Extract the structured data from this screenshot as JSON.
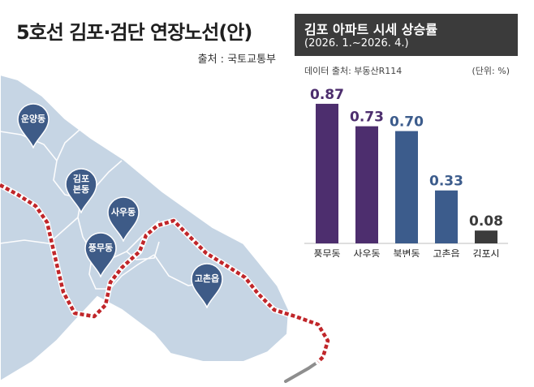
{
  "header": {
    "title": "5호선 김포·검단 연장노선(안)",
    "source": "출처 : 국토교통부"
  },
  "map": {
    "pins": [
      {
        "id": "unyang",
        "label": [
          "운양동"
        ]
      },
      {
        "id": "gimpo-bondong",
        "label": [
          "김포",
          "본동"
        ]
      },
      {
        "id": "sau",
        "label": [
          "사우동"
        ]
      },
      {
        "id": "pungmu",
        "label": [
          "풍무동"
        ]
      },
      {
        "id": "gochon",
        "label": [
          "고촌읍"
        ]
      }
    ],
    "colors": {
      "land": "#c6d5e4",
      "land_border": "#ffffff",
      "route": "#c0262a",
      "route_gap": "#ffffff",
      "existing_line": "#8e8e8e",
      "pin": "#3e5b87"
    }
  },
  "panel": {
    "title": "김포 아파트 시세 상승률",
    "period": "(2026. 1.~2026. 4.)",
    "data_source": "데이터 출처: 부동산R114",
    "unit": "(단위: %)"
  },
  "chart_data": {
    "type": "bar",
    "title": "김포 아파트 시세 상승률",
    "subtitle": "(2026. 1.~2026. 4.)",
    "xlabel": "",
    "ylabel": "",
    "categories": [
      "풍무동",
      "사우동",
      "북변동",
      "고촌읍",
      "김포시"
    ],
    "values": [
      0.87,
      0.73,
      0.7,
      0.33,
      0.08
    ],
    "value_labels": [
      "0.87",
      "0.73",
      "0.70",
      "0.33",
      "0.08"
    ],
    "bar_colors": [
      "#4d2e6e",
      "#4d2e6e",
      "#3c5c8c",
      "#3c5c8c",
      "#3b3b3b"
    ],
    "label_colors": [
      "#4d2e6e",
      "#4d2e6e",
      "#3c5c8c",
      "#3c5c8c",
      "#3b3b3b"
    ],
    "ylim": [
      0,
      0.9
    ],
    "grid": false,
    "legend": "none"
  }
}
